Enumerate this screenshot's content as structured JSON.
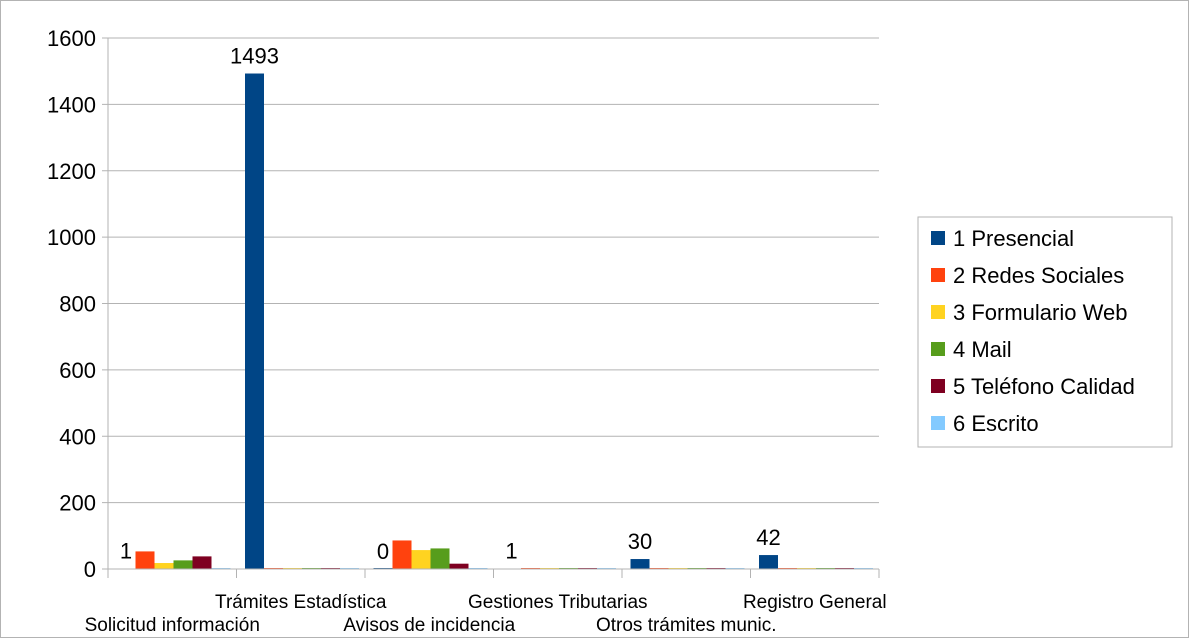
{
  "chart_data": {
    "type": "bar",
    "categories": [
      "Solicitud información",
      "Trámites Estadística",
      "Avisos de incidencia",
      "Gestiones Tributarias",
      "Otros trámites munic.",
      "Registro General"
    ],
    "series": [
      {
        "name": "1 Presencial",
        "color": "#004586",
        "values": [
          1,
          1493,
          0,
          1,
          30,
          42
        ]
      },
      {
        "name": "2 Redes Sociales",
        "color": "#ff420e",
        "values": [
          53,
          0,
          86,
          0,
          0,
          0
        ]
      },
      {
        "name": "3 Formulario Web",
        "color": "#ffd320",
        "values": [
          18,
          0,
          57,
          0,
          0,
          0
        ]
      },
      {
        "name": "4 Mail",
        "color": "#579d1c",
        "values": [
          26,
          0,
          62,
          0,
          0,
          0
        ]
      },
      {
        "name": "5 Teléfono Calidad",
        "color": "#7e0021",
        "values": [
          38,
          0,
          16,
          0,
          0,
          0
        ]
      },
      {
        "name": "6 Escrito",
        "color": "#83caff",
        "values": [
          0,
          0,
          3,
          0,
          0,
          0
        ]
      }
    ],
    "data_labels": {
      "series": "1 Presencial",
      "values": [
        "1",
        "1493",
        "0",
        "1",
        "30",
        "42"
      ]
    },
    "y_ticks": [
      "0",
      "200",
      "400",
      "600",
      "800",
      "1000",
      "1200",
      "1400",
      "1600"
    ],
    "ylim": [
      0,
      1600
    ],
    "grid": true,
    "legend_position": "right"
  }
}
